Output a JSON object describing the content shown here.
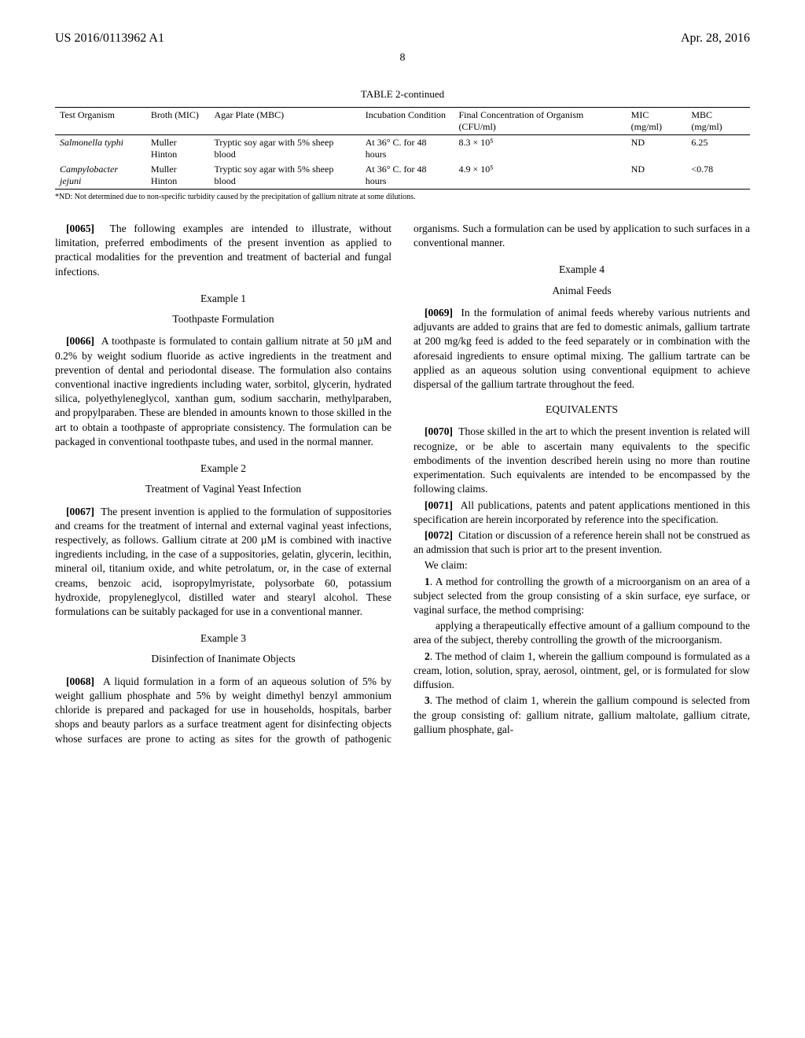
{
  "header": {
    "pub_number": "US 2016/0113962 A1",
    "pub_date": "Apr. 28, 2016",
    "page": "8"
  },
  "table": {
    "caption": "TABLE 2-continued",
    "columns": [
      "Test Organism",
      "Broth (MIC)",
      "Agar Plate (MBC)",
      "Incubation Condition",
      "Final Concentration of Organism (CFU/ml)",
      "MIC (mg/ml)",
      "MBC (mg/ml)"
    ],
    "rows": [
      {
        "organism": "Salmonella typhi",
        "broth": "Muller Hinton",
        "agar": "Tryptic soy agar with 5% sheep blood",
        "incubation": "At 36° C. for 48 hours",
        "conc": "8.3 × 10⁵",
        "mic": "ND",
        "mbc": "6.25"
      },
      {
        "organism": "Campylobacter jejuni",
        "broth": "Muller Hinton",
        "agar": "Tryptic soy agar with 5% sheep blood",
        "incubation": "At 36° C. for 48 hours",
        "conc": "4.9 × 10⁵",
        "mic": "ND",
        "mbc": "<0.78"
      }
    ],
    "footnote": "*ND: Not determined due to non-specific turbidity caused by the precipitation of gallium nitrate at some dilutions."
  },
  "paragraphs": {
    "p0065": {
      "num": "[0065]",
      "text": "The following examples are intended to illustrate, without limitation, preferred embodiments of the present invention as applied to practical modalities for the prevention and treatment of bacterial and fungal infections."
    },
    "p0066": {
      "num": "[0066]",
      "text": "A toothpaste is formulated to contain gallium nitrate at 50 µM and 0.2% by weight sodium fluoride as active ingredients in the treatment and prevention of dental and periodontal disease. The formulation also contains conventional inactive ingredients including water, sorbitol, glycerin, hydrated silica, polyethyleneglycol, xanthan gum, sodium saccharin, methylparaben, and propylparaben. These are blended in amounts known to those skilled in the art to obtain a toothpaste of appropriate consistency. The formulation can be packaged in conventional toothpaste tubes, and used in the normal manner."
    },
    "p0067": {
      "num": "[0067]",
      "text": "The present invention is applied to the formulation of suppositories and creams for the treatment of internal and external vaginal yeast infections, respectively, as follows. Gallium citrate at 200 µM is combined with inactive ingredients including, in the case of a suppositories, gelatin, glycerin, lecithin, mineral oil, titanium oxide, and white petrolatum, or, in the case of external creams, benzoic acid, isopropylmyristate, polysorbate 60, potassium hydroxide, propyleneglycol, distilled water and stearyl alcohol. These formulations can be suitably packaged for use in a conventional manner."
    },
    "p0068": {
      "num": "[0068]",
      "text": "A liquid formulation in a form of an aqueous solution of 5% by weight gallium phosphate and 5% by weight dimethyl benzyl ammonium chloride is prepared and packaged for use in households, hospitals, barber shops and beauty parlors as a surface treatment agent for disinfecting objects whose surfaces are prone to acting as sites for the growth of pathogenic organisms. Such a formulation can be used by application to such surfaces in a conventional manner."
    },
    "p0069": {
      "num": "[0069]",
      "text": "In the formulation of animal feeds whereby various nutrients and adjuvants are added to grains that are fed to domestic animals, gallium tartrate at 200 mg/kg feed is added to the feed separately or in combination with the aforesaid ingredients to ensure optimal mixing. The gallium tartrate can be applied as an aqueous solution using conventional equipment to achieve dispersal of the gallium tartrate throughout the feed."
    },
    "p0070": {
      "num": "[0070]",
      "text": "Those skilled in the art to which the present invention is related will recognize, or be able to ascertain many equivalents to the specific embodiments of the invention described herein using no more than routine experimentation. Such equivalents are intended to be encompassed by the following claims."
    },
    "p0071": {
      "num": "[0071]",
      "text": "All publications, patents and patent applications mentioned in this specification are herein incorporated by reference into the specification."
    },
    "p0072": {
      "num": "[0072]",
      "text": "Citation or discussion of a reference herein shall not be construed as an admission that such is prior art to the present invention."
    }
  },
  "examples": {
    "e1": {
      "num": "Example 1",
      "title": "Toothpaste Formulation"
    },
    "e2": {
      "num": "Example 2",
      "title": "Treatment of Vaginal Yeast Infection"
    },
    "e3": {
      "num": "Example 3",
      "title": "Disinfection of Inanimate Objects"
    },
    "e4": {
      "num": "Example 4",
      "title": "Animal Feeds"
    }
  },
  "sections": {
    "equivalents": "EQUIVALENTS"
  },
  "claims": {
    "we_claim": "We claim:",
    "c1_intro": "1. A method for controlling the growth of a microorganism on an area of a subject selected from the group consisting of a skin surface, eye surface, or vaginal surface, the method comprising:",
    "c1_step": "applying a therapeutically effective amount of a gallium compound to the area of the subject, thereby controlling the growth of the microorganism.",
    "c2": "2. The method of claim 1, wherein the gallium compound is formulated as a cream, lotion, solution, spray, aerosol, ointment, gel, or is formulated for slow diffusion.",
    "c3": "3. The method of claim 1, wherein the gallium compound is selected from the group consisting of: gallium nitrate, gallium maltolate, gallium citrate, gallium phosphate, gal-"
  }
}
